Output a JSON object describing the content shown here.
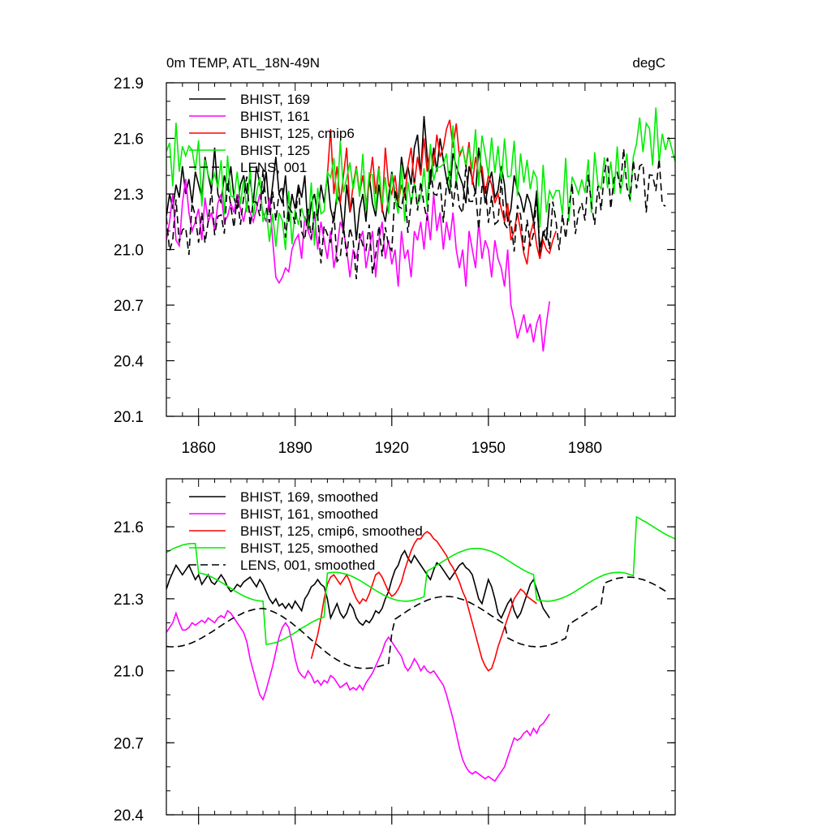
{
  "chart_data": [
    {
      "type": "line",
      "title_left": "0m TEMP, ATL_18N-49N",
      "title_right": "degC",
      "xlim": [
        1850,
        2008
      ],
      "ylim": [
        20.1,
        21.9
      ],
      "xticks": [
        1860,
        1890,
        1920,
        1950,
        1980
      ],
      "xtick_labels": [
        "1860",
        "1890",
        "1920",
        "1950",
        "1980"
      ],
      "yticks": [
        20.1,
        20.4,
        20.7,
        21.0,
        21.3,
        21.6,
        21.9
      ],
      "ytick_labels": [
        "20.1",
        "20.4",
        "20.7",
        "21.0",
        "21.3",
        "21.6",
        "21.9"
      ],
      "legend": "top-left",
      "series": [
        {
          "name": "BHIST, 169",
          "color": "#000000",
          "dash": false,
          "start": 1850,
          "values": [
            21.18,
            21.3,
            21.22,
            21.35,
            21.28,
            21.45,
            21.3,
            21.38,
            21.25,
            21.42,
            21.35,
            21.28,
            21.5,
            21.4,
            21.32,
            21.55,
            21.3,
            21.25,
            21.4,
            21.32,
            21.45,
            21.28,
            21.22,
            21.35,
            21.4,
            21.3,
            21.38,
            21.25,
            21.45,
            21.35,
            21.3,
            21.42,
            21.2,
            21.35,
            21.5,
            21.3,
            21.25,
            21.4,
            21.15,
            21.3,
            21.22,
            21.35,
            21.28,
            21.4,
            21.1,
            21.25,
            21.3,
            21.18,
            21.35,
            21.25,
            21.4,
            21.22,
            21.15,
            21.3,
            21.25,
            21.1,
            21.35,
            21.2,
            21.28,
            21.05,
            21.22,
            21.3,
            21.15,
            21.4,
            21.25,
            21.18,
            21.35,
            21.22,
            21.15,
            21.28,
            21.42,
            21.3,
            21.25,
            21.5,
            21.38,
            21.45,
            21.35,
            21.55,
            21.62,
            21.4,
            21.72,
            21.5,
            21.35,
            21.55,
            21.42,
            21.6,
            21.48,
            21.38,
            21.3,
            21.52,
            21.45,
            21.4,
            21.35,
            21.25,
            21.45,
            21.38,
            21.3,
            21.55,
            21.4,
            21.25,
            21.35,
            21.42,
            21.28,
            21.32,
            21.45,
            21.35,
            21.15,
            21.22,
            21.4,
            21.32,
            21.28,
            21.2,
            21.3,
            21.25,
            21.15,
            21.32,
            20.95,
            21.1,
            21.05,
            21.25
          ]
        },
        {
          "name": "BHIST, 161",
          "color": "#ff00ff",
          "dash": false,
          "start": 1850,
          "values": [
            21.05,
            21.15,
            21.3,
            21.05,
            21.02,
            21.25,
            21.38,
            21.2,
            21.1,
            21.15,
            21.22,
            21.05,
            21.28,
            21.15,
            21.2,
            21.1,
            21.25,
            21.3,
            21.15,
            21.18,
            21.25,
            21.2,
            21.3,
            21.22,
            21.15,
            21.25,
            21.2,
            21.15,
            21.22,
            21.3,
            21.2,
            21.15,
            21.28,
            21.05,
            20.85,
            20.82,
            20.85,
            20.9,
            20.88,
            21.0,
            21.05,
            21.08,
            20.95,
            21.18,
            21.1,
            21.05,
            21.2,
            21.0,
            21.15,
            21.05,
            20.95,
            21.1,
            20.9,
            21.0,
            21.15,
            21.1,
            21.0,
            20.85,
            21.0,
            20.95,
            21.05,
            21.1,
            20.9,
            21.0,
            21.1,
            20.85,
            21.05,
            21.15,
            20.95,
            21.05,
            20.92,
            21.0,
            20.8,
            21.1,
            20.95,
            21.0,
            20.85,
            21.1,
            21.05,
            21.15,
            21.0,
            21.2,
            21.05,
            21.3,
            21.1,
            21.2,
            21.0,
            21.15,
            21.05,
            21.2,
            21.0,
            20.9,
            21.0,
            20.8,
            21.1,
            21.0,
            20.9,
            21.15,
            20.95,
            21.05,
            21.0,
            20.85,
            21.05,
            20.95,
            20.9,
            20.8,
            21.0,
            20.7,
            20.62,
            20.52,
            20.58,
            20.65,
            20.55,
            20.6,
            20.5,
            20.6,
            20.65,
            20.45,
            20.6,
            20.72
          ]
        },
        {
          "name": "BHIST, 125, cmip6",
          "color": "#ff0000",
          "dash": false,
          "start": 1900,
          "values": [
            21.4,
            21.65,
            21.3,
            21.45,
            21.25,
            21.4,
            21.55,
            21.2,
            21.35,
            21.45,
            21.3,
            21.4,
            21.25,
            21.35,
            21.5,
            21.3,
            21.45,
            21.2,
            21.55,
            21.35,
            21.3,
            21.4,
            21.25,
            21.35,
            21.28,
            21.45,
            21.55,
            21.35,
            21.5,
            21.4,
            21.6,
            21.42,
            21.55,
            21.45,
            21.62,
            21.5,
            21.55,
            21.65,
            21.7,
            21.55,
            21.68,
            21.5,
            21.55,
            21.45,
            21.58,
            21.35,
            21.5,
            21.4,
            21.45,
            21.3,
            21.4,
            21.35,
            21.25,
            21.3,
            21.22,
            21.15,
            21.25,
            21.05,
            21.1,
            21.2,
            21.1,
            20.98,
            20.92,
            21.08,
            21.15,
            21.02,
            20.95,
            21.05,
            21.0,
            20.98,
            21.05,
            21.1
          ]
        }
      ]
    },
    {
      "type": "line",
      "xlim": [
        1850,
        2008
      ],
      "ylim": [
        20.4,
        21.8
      ],
      "yticks": [
        20.4,
        20.7,
        21.0,
        21.3,
        21.6
      ],
      "ytick_labels": [
        "20.4",
        "20.7",
        "21.0",
        "21.3",
        "21.6"
      ],
      "legend": "top-left",
      "series": [
        {
          "name": "BHIST, 169, smoothed",
          "color": "#000000",
          "dash": false,
          "start": 1850,
          "values": [
            21.34,
            21.38,
            21.41,
            21.44,
            21.42,
            21.4,
            21.42,
            21.44,
            21.41,
            21.38,
            21.4,
            21.36,
            21.38,
            21.4,
            21.37,
            21.36,
            21.38,
            21.4,
            21.38,
            21.35,
            21.33,
            21.34,
            21.36,
            21.35,
            21.37,
            21.38,
            21.39,
            21.37,
            21.35,
            21.38,
            21.36,
            21.33,
            21.3,
            21.28,
            21.3,
            21.27,
            21.28,
            21.26,
            21.28,
            21.26,
            21.29,
            21.27,
            21.25,
            21.3,
            21.32,
            21.35,
            21.36,
            21.38,
            21.36,
            21.35,
            21.3,
            21.22,
            21.25,
            21.28,
            21.24,
            21.22,
            21.24,
            21.28,
            21.26,
            21.22,
            21.2,
            21.19,
            21.21,
            21.2,
            21.22,
            21.25,
            21.24,
            21.26,
            21.3,
            21.33,
            21.38,
            21.42,
            21.44,
            21.48,
            21.5,
            21.47,
            21.45,
            21.48,
            21.46,
            21.44,
            21.42,
            21.4,
            21.38,
            21.42,
            21.45,
            21.44,
            21.42,
            21.4,
            21.38,
            21.4,
            21.42,
            21.44,
            21.45,
            21.43,
            21.42,
            21.4,
            21.35,
            21.3,
            21.28,
            21.33,
            21.38,
            21.35,
            21.3,
            21.24,
            21.22,
            21.25,
            21.28,
            21.3,
            21.25,
            21.22,
            21.24,
            21.28,
            21.32,
            21.36,
            21.38,
            21.34,
            21.3,
            21.26,
            21.24,
            21.22
          ]
        },
        {
          "name": "BHIST, 161, smoothed",
          "color": "#ff00ff",
          "dash": false,
          "start": 1850,
          "values": [
            21.16,
            21.18,
            21.2,
            21.24,
            21.2,
            21.17,
            21.17,
            21.18,
            21.2,
            21.19,
            21.2,
            21.21,
            21.2,
            21.22,
            21.21,
            21.2,
            21.22,
            21.23,
            21.22,
            21.25,
            21.24,
            21.22,
            21.2,
            21.18,
            21.16,
            21.12,
            21.05,
            21.0,
            20.95,
            20.9,
            20.88,
            20.92,
            20.97,
            21.02,
            21.08,
            21.14,
            21.18,
            21.2,
            21.18,
            21.12,
            21.05,
            21.0,
            20.98,
            20.97,
            21.0,
            20.98,
            20.95,
            20.96,
            20.94,
            20.96,
            20.95,
            20.98,
            20.97,
            20.95,
            20.93,
            20.94,
            20.95,
            20.92,
            20.93,
            20.92,
            20.94,
            20.92,
            20.95,
            20.97,
            20.99,
            21.02,
            21.05,
            21.08,
            21.12,
            21.14,
            21.12,
            21.1,
            21.08,
            21.06,
            21.02,
            21.0,
            21.02,
            21.05,
            21.03,
            21.0,
            21.02,
            21.0,
            20.99,
            21.0,
            20.98,
            20.96,
            20.94,
            20.9,
            20.85,
            20.8,
            20.74,
            20.68,
            20.63,
            20.6,
            20.58,
            20.57,
            20.58,
            20.57,
            20.56,
            20.55,
            20.56,
            20.55,
            20.54,
            20.56,
            20.58,
            20.6,
            20.64,
            20.68,
            20.72,
            20.71,
            20.72,
            20.74,
            20.75,
            20.73,
            20.76,
            20.74,
            20.77,
            20.78,
            20.8,
            20.82
          ]
        },
        {
          "name": "BHIST, 125, cmip6, smoothed",
          "color": "#ff0000",
          "dash": false,
          "start": 1895,
          "values": [
            21.05,
            21.1,
            21.15,
            21.22,
            21.3,
            21.36,
            21.39,
            21.4,
            21.38,
            21.36,
            21.38,
            21.4,
            21.37,
            21.33,
            21.3,
            21.28,
            21.3,
            21.29,
            21.32,
            21.36,
            21.4,
            21.41,
            21.39,
            21.36,
            21.33,
            21.31,
            21.32,
            21.34,
            21.37,
            21.42,
            21.46,
            21.5,
            21.53,
            21.55,
            21.55,
            21.57,
            21.58,
            21.57,
            21.55,
            21.54,
            21.52,
            21.5,
            21.48,
            21.45,
            21.43,
            21.4,
            21.37,
            21.33,
            21.3,
            21.25,
            21.2,
            21.15,
            21.1,
            21.05,
            21.02,
            21.0,
            21.01,
            21.05,
            21.1,
            21.14,
            21.18,
            21.22,
            21.26,
            21.3,
            21.32,
            21.34,
            21.33,
            21.31,
            21.3,
            21.29,
            21.28
          ]
        }
      ]
    }
  ],
  "legends": [
    {
      "entries": [
        {
          "label": "BHIST, 169",
          "color": "#000000",
          "dash": false
        },
        {
          "label": "BHIST, 161",
          "color": "#ff00ff",
          "dash": false
        },
        {
          "label": "BHIST, 125, cmip6",
          "color": "#ff0000",
          "dash": false
        },
        {
          "label": "BHIST, 125",
          "color": "#00ee00",
          "dash": false
        },
        {
          "label": "LENS, 001",
          "color": "#000000",
          "dash": true
        }
      ]
    },
    {
      "entries": [
        {
          "label": "BHIST, 169, smoothed",
          "color": "#000000",
          "dash": false
        },
        {
          "label": "BHIST, 161, smoothed",
          "color": "#ff00ff",
          "dash": false
        },
        {
          "label": "BHIST, 125, cmip6, smoothed",
          "color": "#ff0000",
          "dash": false
        },
        {
          "label": "BHIST, 125, smoothed",
          "color": "#00ee00",
          "dash": false
        },
        {
          "label": "LENS, 001, smoothed",
          "color": "#000000",
          "dash": true
        }
      ]
    }
  ]
}
